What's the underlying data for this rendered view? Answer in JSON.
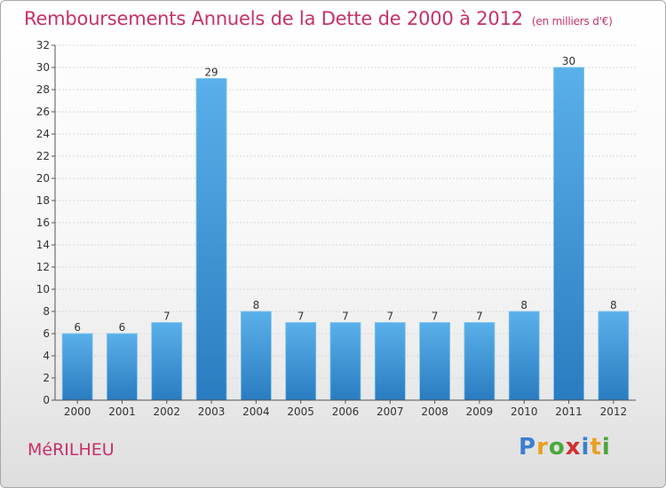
{
  "title": "Remboursements Annuels de la Dette de 2000 à 2012",
  "unit": "(en milliers d'€)",
  "commune": "MéRILHEU",
  "logo": {
    "text": "Proxiti",
    "letters": [
      {
        "char": "P",
        "color": "#3a7fd0"
      },
      {
        "char": "r",
        "color": "#e8a020"
      },
      {
        "char": "o",
        "color": "#4aa83a"
      },
      {
        "char": "x",
        "color": "#d03030"
      },
      {
        "char": "i",
        "color": "#3a7fd0"
      },
      {
        "char": "t",
        "color": "#e8a020"
      },
      {
        "char": "i",
        "color": "#4aa83a"
      }
    ]
  },
  "colors": {
    "title": "#c8306a",
    "bar_top": "#5ab0ea",
    "bar_bottom": "#2a7cc0",
    "axis": "#555555",
    "grid": "#d8d8d8"
  },
  "chart_data": {
    "type": "bar",
    "title": "Remboursements Annuels de la Dette de 2000 à 2012",
    "ylabel": "",
    "xlabel": "",
    "ylim": [
      0,
      32
    ],
    "yticks": [
      0,
      2,
      4,
      6,
      8,
      10,
      12,
      14,
      16,
      18,
      20,
      22,
      24,
      26,
      28,
      30,
      32
    ],
    "categories": [
      "2000",
      "2001",
      "2002",
      "2003",
      "2004",
      "2005",
      "2006",
      "2007",
      "2008",
      "2009",
      "2010",
      "2011",
      "2012"
    ],
    "values": [
      6,
      6,
      7,
      29,
      8,
      7,
      7,
      7,
      7,
      7,
      8,
      30,
      8
    ],
    "grid": true
  }
}
